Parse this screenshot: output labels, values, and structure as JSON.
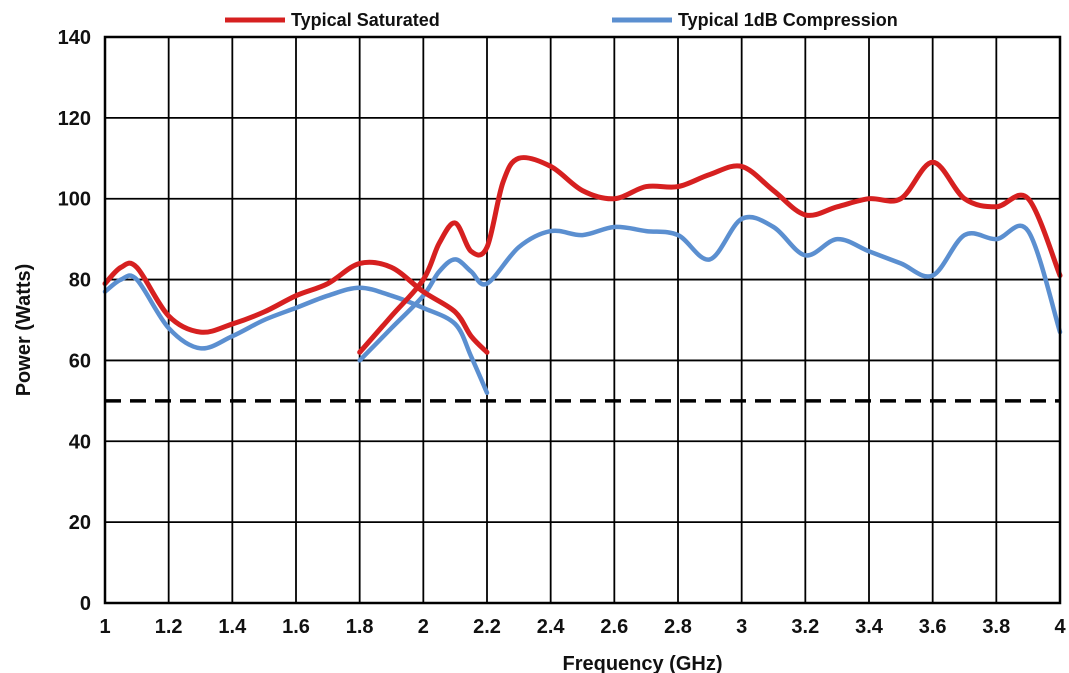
{
  "chart_data": {
    "type": "line",
    "xlabel": "Frequency (GHz)",
    "ylabel": "Power (Watts)",
    "xlim": [
      1,
      4
    ],
    "ylim": [
      0,
      140
    ],
    "x_ticks": [
      "1",
      "1.2",
      "1.4",
      "1.6",
      "1.8",
      "2",
      "2.2",
      "2.4",
      "2.6",
      "2.8",
      "3",
      "3.2",
      "3.4",
      "3.6",
      "3.8",
      "4"
    ],
    "y_ticks": [
      "0",
      "20",
      "40",
      "60",
      "80",
      "100",
      "120",
      "140"
    ],
    "grid": true,
    "legend_position": "top",
    "reference_line": {
      "y": 50,
      "style": "dashed",
      "color": "#000000"
    },
    "series": [
      {
        "name": "Typical Saturated",
        "color": "#d62020",
        "segments": [
          {
            "x": [
              1.0,
              1.05,
              1.1,
              1.2,
              1.3,
              1.4,
              1.5,
              1.6,
              1.7,
              1.8,
              1.9,
              2.0,
              2.1,
              2.15,
              2.2
            ],
            "y": [
              79,
              83,
              83,
              71,
              67,
              69,
              72,
              76,
              79,
              84,
              83,
              77,
              72,
              66,
              62
            ]
          },
          {
            "x": [
              1.8,
              1.9,
              2.0,
              2.05,
              2.1,
              2.15,
              2.2,
              2.25,
              2.3,
              2.4,
              2.5,
              2.6,
              2.7,
              2.8,
              2.9,
              3.0,
              3.1,
              3.2,
              3.3,
              3.4,
              3.5,
              3.6,
              3.7,
              3.8,
              3.9,
              4.0
            ],
            "y": [
              62,
              71,
              80,
              89,
              94,
              87,
              88,
              104,
              110,
              108,
              102,
              100,
              103,
              103,
              106,
              108,
              102,
              96,
              98,
              100,
              100,
              109,
              100,
              98,
              100,
              81
            ]
          }
        ]
      },
      {
        "name": "Typical 1dB Compression",
        "color": "#5b8fd0",
        "segments": [
          {
            "x": [
              1.0,
              1.05,
              1.1,
              1.2,
              1.3,
              1.4,
              1.5,
              1.6,
              1.7,
              1.8,
              1.9,
              2.0,
              2.1,
              2.15,
              2.2
            ],
            "y": [
              77,
              80,
              80,
              68,
              63,
              66,
              70,
              73,
              76,
              78,
              76,
              73,
              69,
              61,
              52
            ]
          },
          {
            "x": [
              1.8,
              1.9,
              2.0,
              2.05,
              2.1,
              2.15,
              2.2,
              2.3,
              2.4,
              2.5,
              2.6,
              2.7,
              2.8,
              2.9,
              3.0,
              3.1,
              3.2,
              3.3,
              3.4,
              3.5,
              3.6,
              3.7,
              3.8,
              3.9,
              4.0
            ],
            "y": [
              60,
              68,
              76,
              82,
              85,
              82,
              79,
              88,
              92,
              91,
              93,
              92,
              91,
              85,
              95,
              93,
              86,
              90,
              87,
              84,
              81,
              91,
              90,
              92,
              67
            ]
          }
        ]
      }
    ]
  }
}
